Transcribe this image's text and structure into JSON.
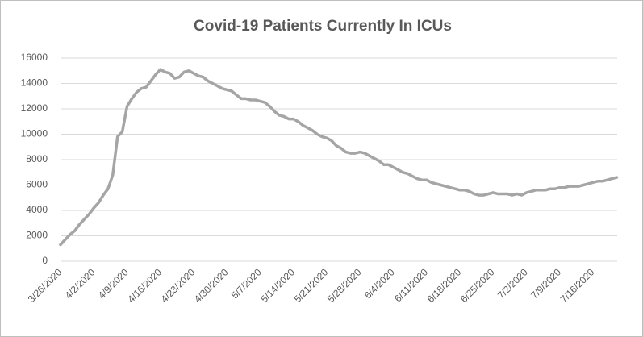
{
  "chart_data": {
    "type": "line",
    "title": "Covid-19 Patients Currently In ICUs",
    "categories": [
      "3/26/2020",
      null,
      null,
      null,
      null,
      null,
      null,
      "4/2/2020",
      null,
      null,
      null,
      null,
      null,
      null,
      "4/9/2020",
      null,
      null,
      null,
      null,
      null,
      null,
      "4/16/2020",
      null,
      null,
      null,
      null,
      null,
      null,
      "4/23/2020",
      null,
      null,
      null,
      null,
      null,
      null,
      "4/30/2020",
      null,
      null,
      null,
      null,
      null,
      null,
      "5/7/2020",
      null,
      null,
      null,
      null,
      null,
      null,
      "5/14/2020",
      null,
      null,
      null,
      null,
      null,
      null,
      "5/21/2020",
      null,
      null,
      null,
      null,
      null,
      null,
      "5/28/2020",
      null,
      null,
      null,
      null,
      null,
      null,
      "6/4/2020",
      null,
      null,
      null,
      null,
      null,
      null,
      "6/11/2020",
      null,
      null,
      null,
      null,
      null,
      null,
      "6/18/2020",
      null,
      null,
      null,
      null,
      null,
      null,
      "6/25/2020",
      null,
      null,
      null,
      null,
      null,
      null,
      "7/2/2020",
      null,
      null,
      null,
      null,
      null,
      null,
      "7/9/2020",
      null,
      null,
      null,
      null,
      null,
      null,
      "7/16/2020",
      null,
      null,
      null,
      null,
      null
    ],
    "values": [
      1300,
      1700,
      2100,
      2400,
      2900,
      3300,
      3700,
      4200,
      4600,
      5200,
      5700,
      6800,
      9800,
      10200,
      12200,
      12800,
      13300,
      13600,
      13700,
      14200,
      14700,
      15100,
      14900,
      14800,
      14400,
      14500,
      14900,
      15000,
      14800,
      14600,
      14500,
      14200,
      14000,
      13800,
      13600,
      13500,
      13400,
      13100,
      12800,
      12800,
      12700,
      12700,
      12600,
      12500,
      12200,
      11800,
      11500,
      11400,
      11200,
      11200,
      11000,
      10700,
      10500,
      10300,
      10000,
      9800,
      9700,
      9500,
      9100,
      8900,
      8600,
      8500,
      8500,
      8600,
      8500,
      8300,
      8100,
      7900,
      7600,
      7600,
      7400,
      7200,
      7000,
      6900,
      6700,
      6500,
      6400,
      6400,
      6200,
      6100,
      6000,
      5900,
      5800,
      5700,
      5600,
      5600,
      5500,
      5300,
      5200,
      5200,
      5300,
      5400,
      5300,
      5300,
      5300,
      5200,
      5300,
      5200,
      5400,
      5500,
      5600,
      5600,
      5600,
      5700,
      5700,
      5800,
      5800,
      5900,
      5900,
      5900,
      6000,
      6100,
      6200,
      6300,
      6300,
      6400,
      6500,
      6600
    ],
    "color": "#a5a5a5",
    "ylim": [
      0,
      16000
    ],
    "yticks": [
      0,
      2000,
      4000,
      6000,
      8000,
      10000,
      12000,
      14000,
      16000
    ],
    "grid": true
  }
}
